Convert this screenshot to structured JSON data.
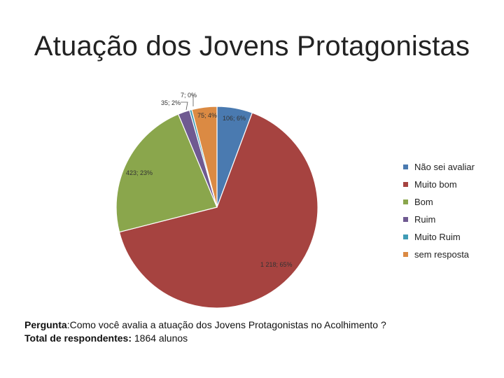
{
  "chart_data": {
    "type": "pie",
    "title": "Atuação dos Jovens Protagonistas",
    "slices": [
      {
        "name": "Não sei avaliar",
        "value": 106,
        "label": "106; 6%",
        "color": "#4a7ab0"
      },
      {
        "name": "Muito bom",
        "value": 1218,
        "label": "1 218; 65%",
        "color": "#a64340"
      },
      {
        "name": "Bom",
        "value": 423,
        "label": "423; 23%",
        "color": "#8aa64c"
      },
      {
        "name": "Ruim",
        "value": 35,
        "label": "35; 2%",
        "color": "#6f5a91"
      },
      {
        "name": "Muito Ruim",
        "value": 7,
        "label": "7; 0%",
        "color": "#3f9bb5"
      },
      {
        "name": "sem resposta",
        "value": 75,
        "label": "75; 4%",
        "color": "#db8a43"
      }
    ],
    "legend_position": "right"
  },
  "note": {
    "question_label": "Pergunta",
    "question_text": ":Como você avalia a atuação dos Jovens Protagonistas no Acolhimento ?",
    "total_label": "Total de respondentes:",
    "total_text": " 1864 alunos"
  }
}
